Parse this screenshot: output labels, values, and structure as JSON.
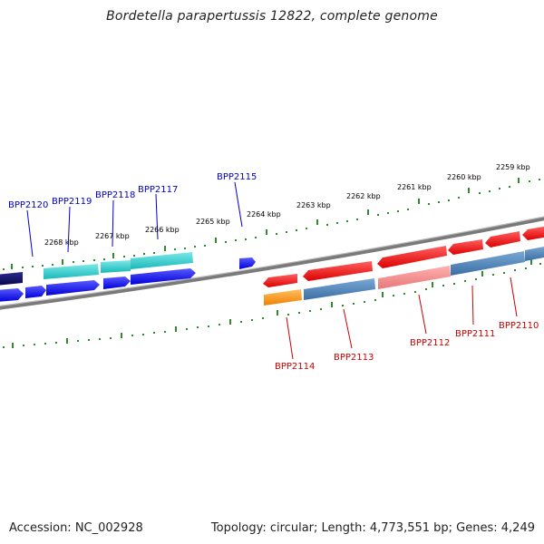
{
  "title": "Bordetella parapertussis 12822, complete genome",
  "footer": {
    "accession": "Accession: NC_002928",
    "topology": "Topology: circular; Length: 4,773,551 bp; Genes: 4,249"
  },
  "ruler_labels": [
    "2259 kbp",
    "2260 kbp",
    "2261 kbp",
    "2262 kbp",
    "2263 kbp",
    "2264 kbp",
    "2265 kbp",
    "2266 kbp",
    "2267 kbp",
    "2268 kbp"
  ],
  "forward_gene_labels": [
    "BPP2120",
    "BPP2119",
    "BPP2118",
    "BPP2117",
    "BPP2115"
  ],
  "reverse_gene_labels": [
    "BPP2114",
    "BPP2113",
    "BPP2112",
    "BPP2111",
    "BPP2110"
  ],
  "colors": {
    "backbone": "#808080",
    "tick": "#2e8b2e",
    "forward_label": "#0000cc",
    "reverse_label": "#cc0000",
    "blue": "#1a1aff",
    "navy": "#0a0a6e",
    "cyan": "#2bd2d2",
    "red": "#ee1111",
    "pink": "#f08a8a",
    "steel": "#4a7fb5",
    "orange": "#ff9a1a"
  }
}
